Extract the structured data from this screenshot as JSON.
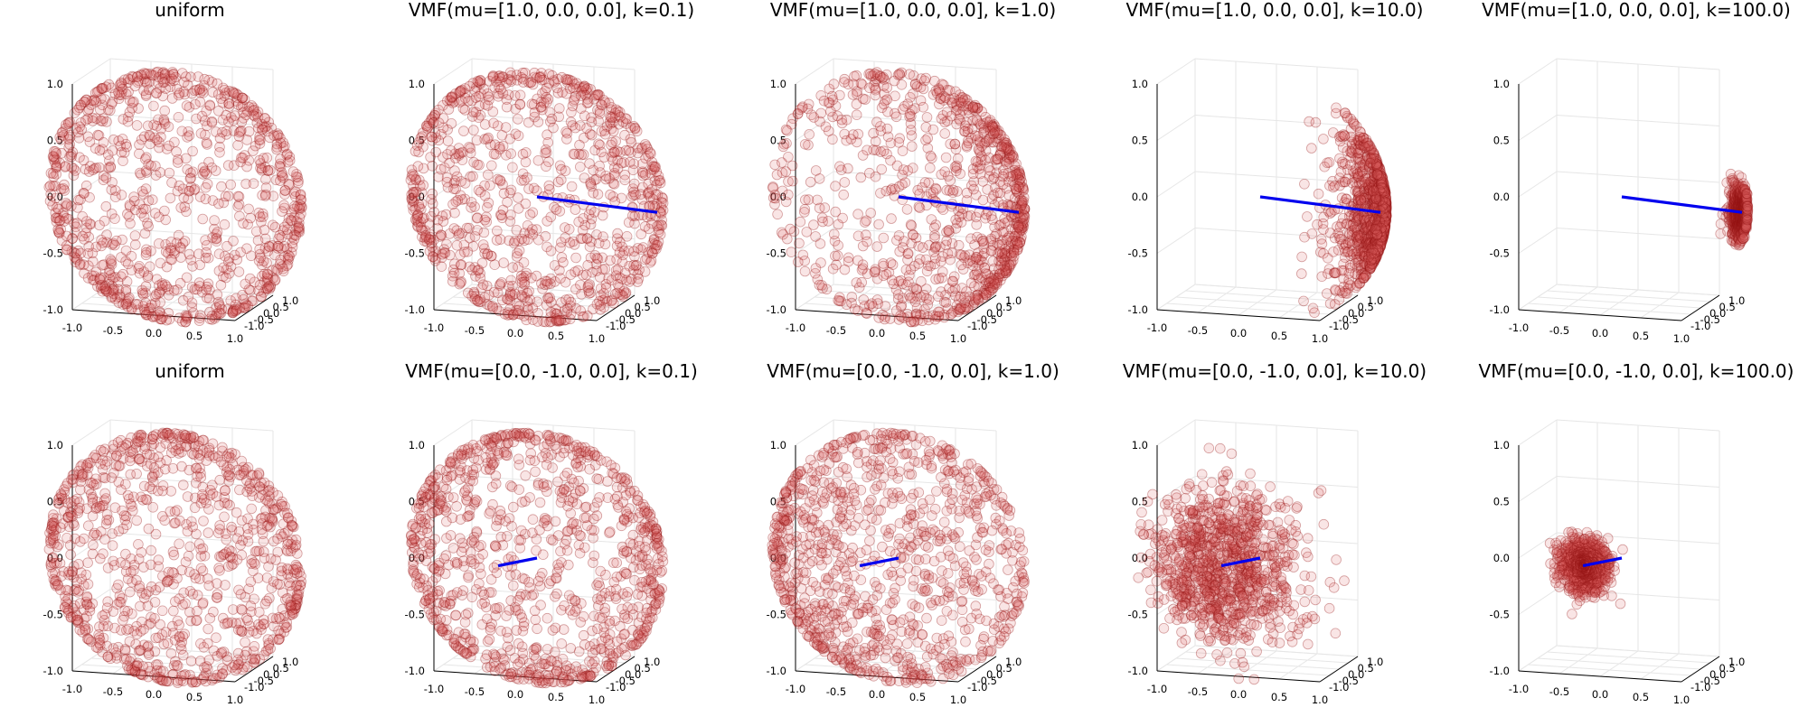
{
  "chart_data": [
    {
      "type": "scatter3d",
      "title": "uniform",
      "kind": "uniform",
      "ticks": [
        -1.0,
        -0.5,
        0.0,
        0.5,
        1.0
      ],
      "xlim": [
        -1,
        1
      ],
      "ylim": [
        -1,
        1
      ],
      "zlim": [
        -1,
        1
      ],
      "n_points": 1000,
      "colors": {
        "points": "#c84040",
        "mean_direction": "#0000ee"
      }
    },
    {
      "type": "scatter3d",
      "title": "VMF(mu=[1.0, 0.0, 0.0], k=0.1)",
      "kind": "vmf",
      "mu": [
        1.0,
        0.0,
        0.0
      ],
      "k": 0.1,
      "ticks": [
        -1.0,
        -0.5,
        0.0,
        0.5,
        1.0
      ],
      "xlim": [
        -1,
        1
      ],
      "ylim": [
        -1,
        1
      ],
      "zlim": [
        -1,
        1
      ],
      "n_points": 1000,
      "colors": {
        "points": "#c84040",
        "mean_direction": "#0000ee"
      }
    },
    {
      "type": "scatter3d",
      "title": "VMF(mu=[1.0, 0.0, 0.0], k=1.0)",
      "kind": "vmf",
      "mu": [
        1.0,
        0.0,
        0.0
      ],
      "k": 1.0,
      "ticks": [
        -1.0,
        -0.5,
        0.0,
        0.5,
        1.0
      ],
      "xlim": [
        -1,
        1
      ],
      "ylim": [
        -1,
        1
      ],
      "zlim": [
        -1,
        1
      ],
      "n_points": 1000,
      "colors": {
        "points": "#c84040",
        "mean_direction": "#0000ee"
      }
    },
    {
      "type": "scatter3d",
      "title": "VMF(mu=[1.0, 0.0, 0.0], k=10.0)",
      "kind": "vmf",
      "mu": [
        1.0,
        0.0,
        0.0
      ],
      "k": 10.0,
      "ticks": [
        -1.0,
        -0.5,
        0.0,
        0.5,
        1.0
      ],
      "xlim": [
        -1,
        1
      ],
      "ylim": [
        -1,
        1
      ],
      "zlim": [
        -1,
        1
      ],
      "n_points": 1000,
      "colors": {
        "points": "#c84040",
        "mean_direction": "#0000ee"
      }
    },
    {
      "type": "scatter3d",
      "title": "VMF(mu=[1.0, 0.0, 0.0], k=100.0)",
      "kind": "vmf",
      "mu": [
        1.0,
        0.0,
        0.0
      ],
      "k": 100.0,
      "ticks": [
        -1.0,
        -0.5,
        0.0,
        0.5,
        1.0
      ],
      "xlim": [
        -1,
        1
      ],
      "ylim": [
        -1,
        1
      ],
      "zlim": [
        -1,
        1
      ],
      "n_points": 1000,
      "colors": {
        "points": "#c84040",
        "mean_direction": "#0000ee"
      }
    },
    {
      "type": "scatter3d",
      "title": "uniform",
      "kind": "uniform",
      "ticks": [
        -1.0,
        -0.5,
        0.0,
        0.5,
        1.0
      ],
      "xlim": [
        -1,
        1
      ],
      "ylim": [
        -1,
        1
      ],
      "zlim": [
        -1,
        1
      ],
      "n_points": 1000,
      "colors": {
        "points": "#c84040",
        "mean_direction": "#0000ee"
      }
    },
    {
      "type": "scatter3d",
      "title": "VMF(mu=[0.0, -1.0, 0.0], k=0.1)",
      "kind": "vmf",
      "mu": [
        0.0,
        -1.0,
        0.0
      ],
      "k": 0.1,
      "ticks": [
        -1.0,
        -0.5,
        0.0,
        0.5,
        1.0
      ],
      "xlim": [
        -1,
        1
      ],
      "ylim": [
        -1,
        1
      ],
      "zlim": [
        -1,
        1
      ],
      "n_points": 1000,
      "colors": {
        "points": "#c84040",
        "mean_direction": "#0000ee"
      }
    },
    {
      "type": "scatter3d",
      "title": "VMF(mu=[0.0, -1.0, 0.0], k=1.0)",
      "kind": "vmf",
      "mu": [
        0.0,
        -1.0,
        0.0
      ],
      "k": 1.0,
      "ticks": [
        -1.0,
        -0.5,
        0.0,
        0.5,
        1.0
      ],
      "xlim": [
        -1,
        1
      ],
      "ylim": [
        -1,
        1
      ],
      "zlim": [
        -1,
        1
      ],
      "n_points": 1000,
      "colors": {
        "points": "#c84040",
        "mean_direction": "#0000ee"
      }
    },
    {
      "type": "scatter3d",
      "title": "VMF(mu=[0.0, -1.0, 0.0], k=10.0)",
      "kind": "vmf",
      "mu": [
        0.0,
        -1.0,
        0.0
      ],
      "k": 10.0,
      "ticks": [
        -1.0,
        -0.5,
        0.0,
        0.5,
        1.0
      ],
      "xlim": [
        -1,
        1
      ],
      "ylim": [
        -1,
        1
      ],
      "zlim": [
        -1,
        1
      ],
      "n_points": 1000,
      "colors": {
        "points": "#c84040",
        "mean_direction": "#0000ee"
      }
    },
    {
      "type": "scatter3d",
      "title": "VMF(mu=[0.0, -1.0, 0.0], k=100.0)",
      "kind": "vmf",
      "mu": [
        0.0,
        -1.0,
        0.0
      ],
      "k": 100.0,
      "ticks": [
        -1.0,
        -0.5,
        0.0,
        0.5,
        1.0
      ],
      "xlim": [
        -1,
        1
      ],
      "ylim": [
        -1,
        1
      ],
      "zlim": [
        -1,
        1
      ],
      "n_points": 1000,
      "colors": {
        "points": "#c84040",
        "mean_direction": "#0000ee"
      }
    }
  ]
}
